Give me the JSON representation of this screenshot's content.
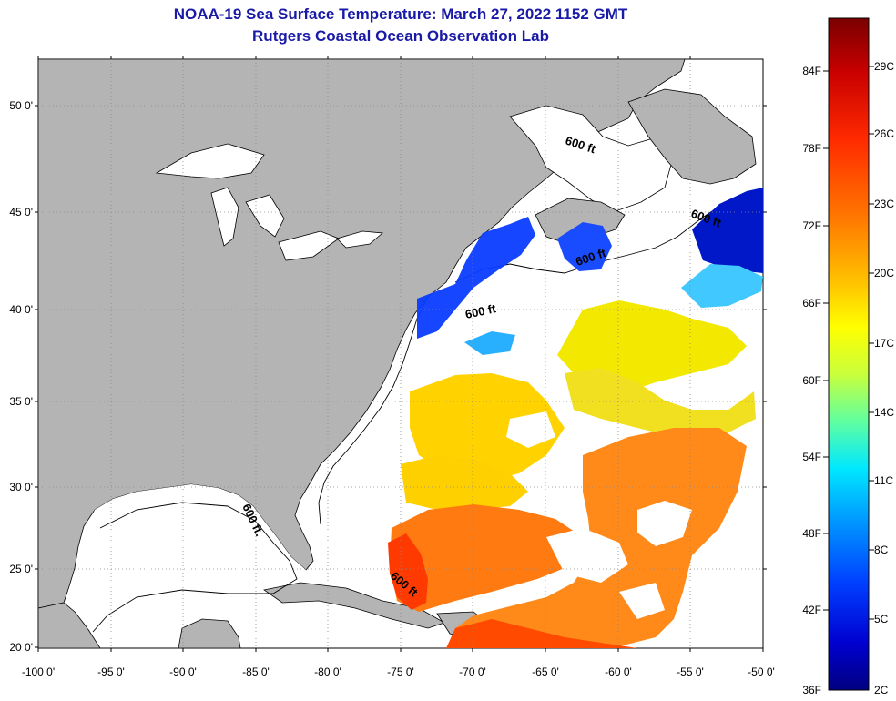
{
  "header": {
    "title": "NOAA-19 Sea Surface Temperature:  March 27, 2022 1152 GMT",
    "subtitle": "Rutgers Coastal Ocean Observation Lab"
  },
  "map": {
    "lat_ticks": [
      "50 0'",
      "45 0'",
      "40 0'",
      "35 0'",
      "30 0'",
      "25 0'",
      "20 0'"
    ],
    "lon_ticks": [
      "-100 0'",
      "-95 0'",
      "-90 0'",
      "-85 0'",
      "-80 0'",
      "-75 0'",
      "-70 0'",
      "-65 0'",
      "-60 0'",
      "-55 0'",
      "-50 0'"
    ],
    "isobath_labels": [
      "600 ft",
      "600 ft",
      "600 ft",
      "600 ft",
      "600 ft.",
      "600 ft"
    ],
    "colors": {
      "land": "#b4b4b4",
      "ocean_no_data": "#ffffff",
      "grid": "#888888"
    }
  },
  "colorbar": {
    "f_labels": [
      "84F",
      "78F",
      "72F",
      "66F",
      "60F",
      "54F",
      "48F",
      "42F",
      "36F"
    ],
    "c_labels": [
      "29C",
      "26C",
      "23C",
      "20C",
      "17C",
      "14C",
      "11C",
      "8C",
      "5C",
      "2C"
    ],
    "gradient": [
      "#7a0000",
      "#c80000",
      "#ff2a00",
      "#ff7a00",
      "#ffc800",
      "#ffff00",
      "#c8ff3c",
      "#60ffa0",
      "#00e8ff",
      "#0096ff",
      "#0040ff",
      "#0000d0",
      "#000080"
    ]
  }
}
